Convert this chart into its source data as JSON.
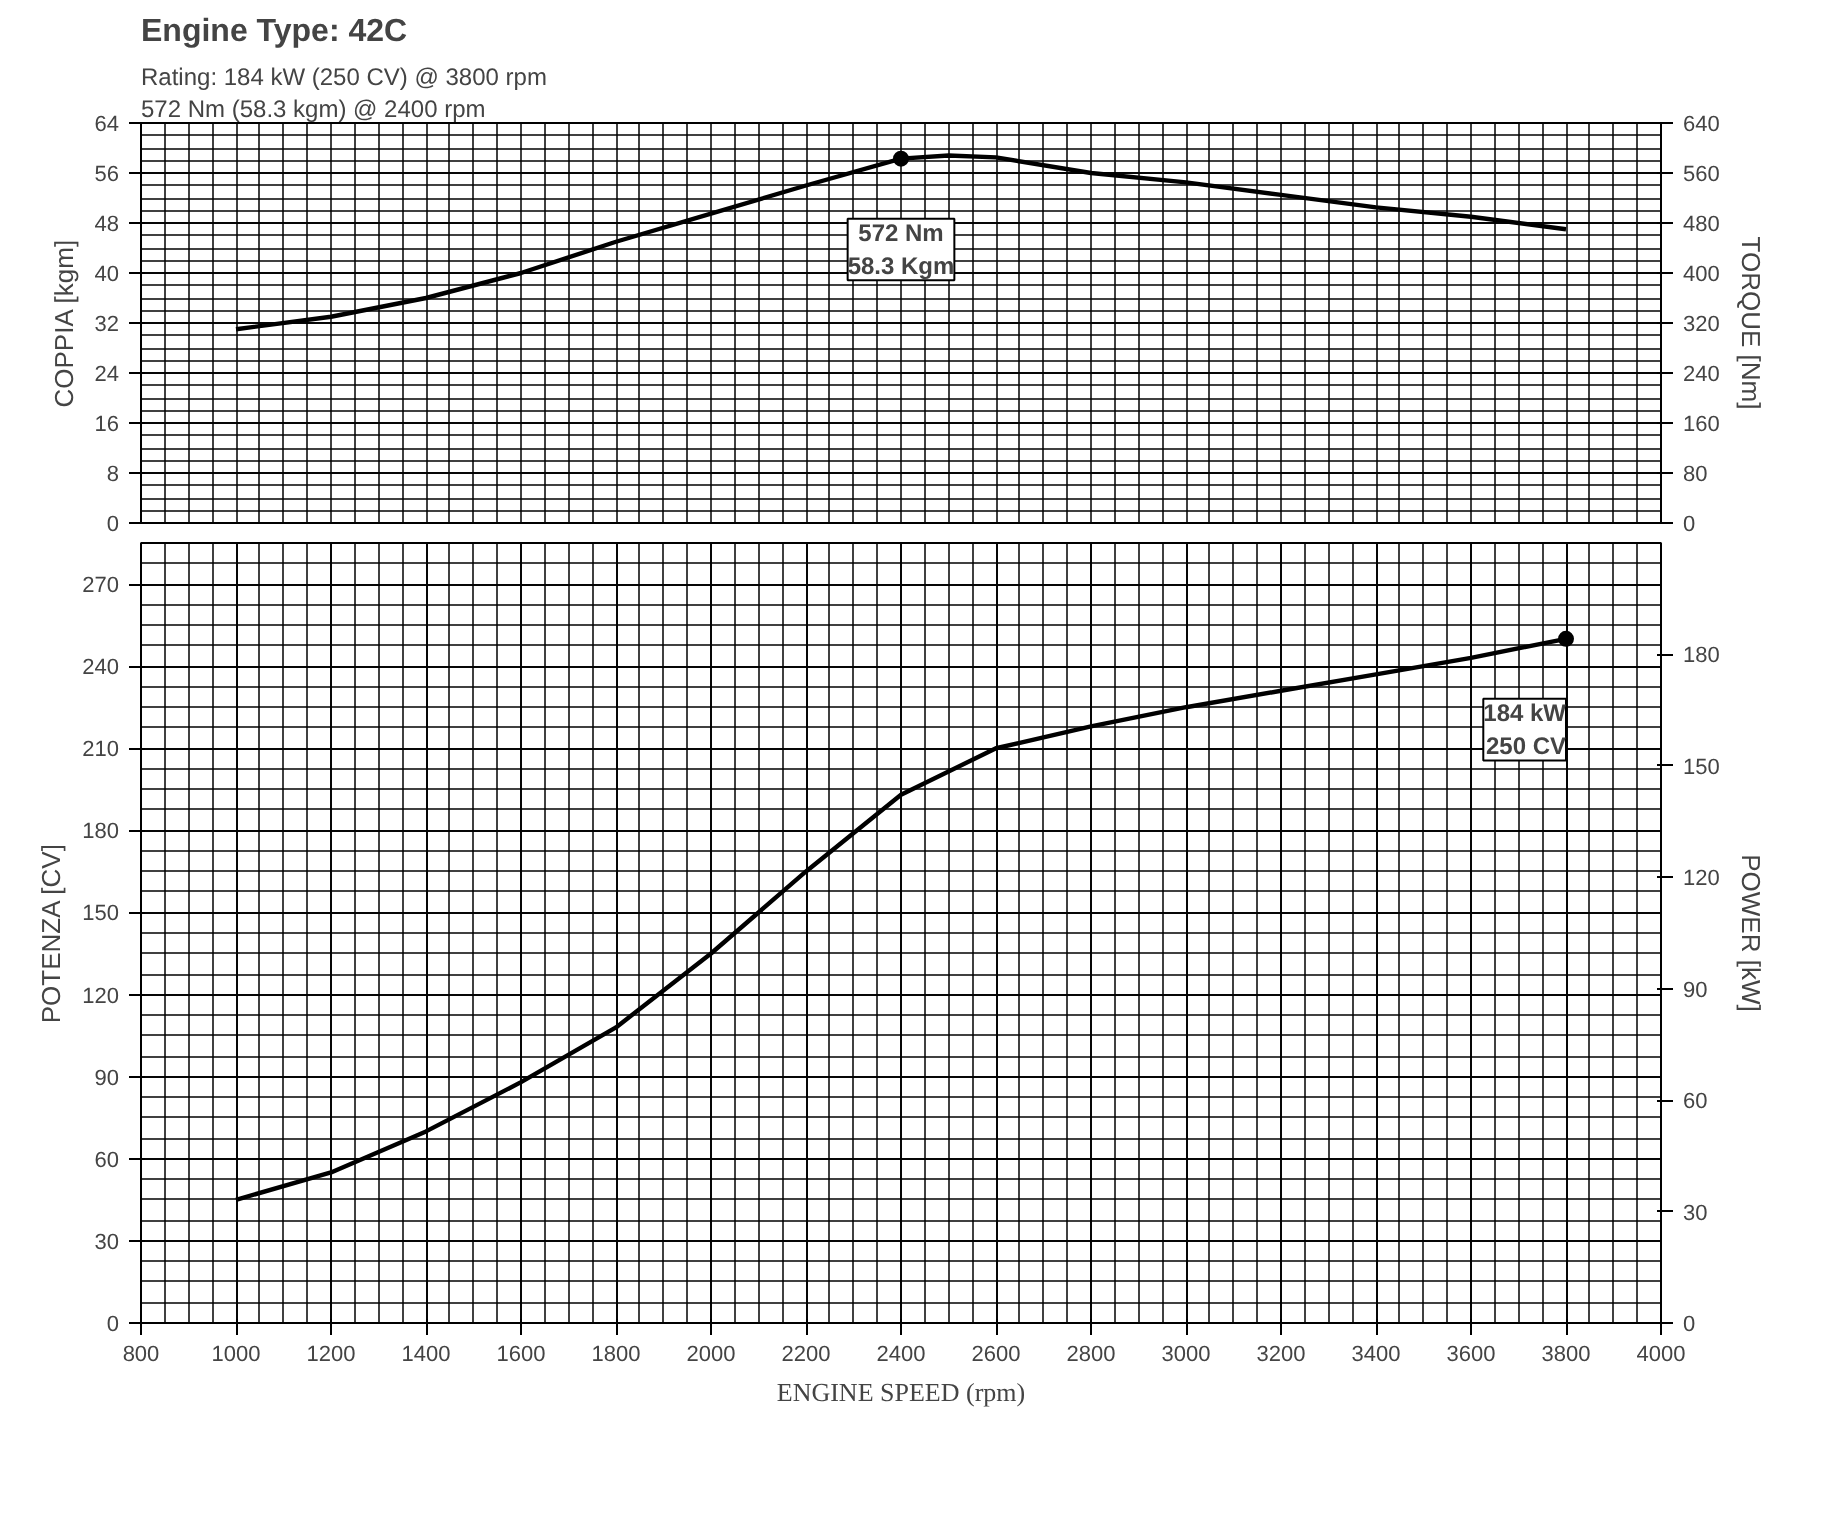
{
  "chart_data": [
    {
      "type": "line",
      "title": "Engine Type: 42C",
      "annotations": [
        "Rating:     184 kW (250 CV)     @ 3800 rpm",
        "572 Nm (58.3 kgm) @ 2400 rpm",
        {
          "text": "572 Nm\n58.3 Kgm",
          "x": 2400,
          "y": 58.3
        }
      ],
      "x": [
        1000,
        1200,
        1400,
        1600,
        1800,
        2000,
        2200,
        2400,
        2500,
        2600,
        2800,
        3000,
        3200,
        3400,
        3600,
        3800
      ],
      "series": [
        {
          "color": "#000000",
          "values": [
            31,
            33,
            36,
            40,
            45,
            49.5,
            54,
            58.3,
            58.8,
            58.5,
            56,
            54.5,
            52.5,
            50.5,
            49,
            47
          ]
        }
      ],
      "ylabel": "COPPIA [kgm]",
      "y2label": "TORQUE [Nm]",
      "xlim": [
        800,
        4000
      ],
      "ylim": [
        0,
        64
      ],
      "yticks": [
        0,
        8,
        16,
        24,
        32,
        40,
        48,
        56,
        64
      ],
      "y2lim": [
        0,
        640
      ],
      "y2ticks": [
        0,
        80,
        160,
        240,
        320,
        400,
        480,
        560,
        640
      ],
      "grid": true,
      "tick_labels": "y"
    },
    {
      "type": "line",
      "annotations": [
        {
          "text": "184 kW\n250 CV",
          "x": 3800,
          "y": 250
        }
      ],
      "x": [
        1000,
        1200,
        1400,
        1600,
        1800,
        2000,
        2200,
        2400,
        2600,
        2800,
        3000,
        3200,
        3400,
        3600,
        3800
      ],
      "series": [
        {
          "color": "#000000",
          "values": [
            45,
            55,
            70,
            88,
            108,
            135,
            165,
            193,
            210,
            218,
            225,
            231,
            237,
            243,
            250
          ]
        }
      ],
      "xlabel": "ENGINE SPEED (rpm)",
      "ylabel": "POTENZA [CV]",
      "y2label": "POWER [kW]",
      "xlim": [
        800,
        4000
      ],
      "xticks": [
        800,
        1000,
        1200,
        1400,
        1600,
        1800,
        2000,
        2200,
        2400,
        2600,
        2800,
        3000,
        3200,
        3400,
        3600,
        3800,
        4000
      ],
      "ylim": [
        0,
        285
      ],
      "yticks": [
        0,
        30,
        60,
        90,
        120,
        150,
        180,
        210,
        240,
        270
      ],
      "y2lim": [
        0,
        210
      ],
      "y2ticks": [
        0,
        30,
        60,
        90,
        120,
        150,
        180
      ],
      "grid": true
    }
  ]
}
